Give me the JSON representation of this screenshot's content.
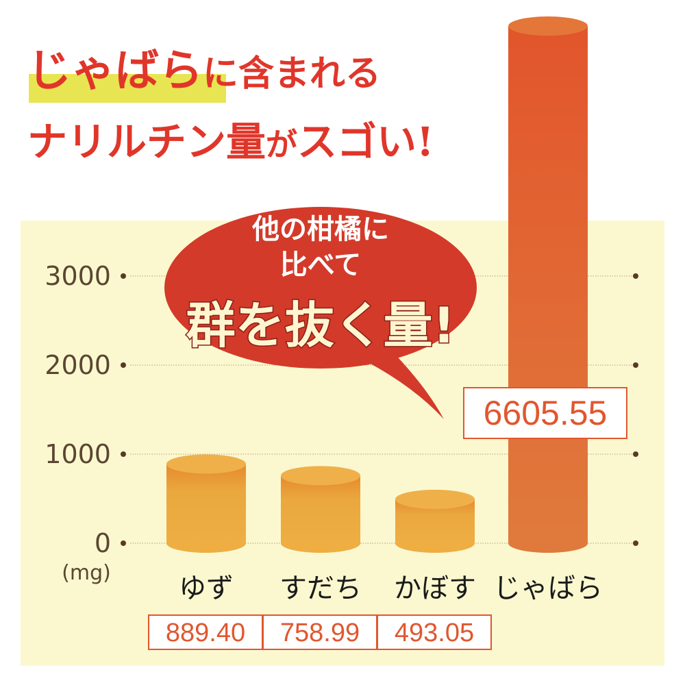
{
  "title": {
    "line1_highlight": "じゃばら",
    "line1_rest": "に含まれる",
    "line2_main": "ナリルチン量",
    "line2_small": "が",
    "line2_end": "スゴい!"
  },
  "bubble": {
    "line1": "他の柑橘に",
    "line2": "比べて",
    "line3": "群を抜く量!"
  },
  "colors": {
    "title": "#e0362a",
    "highlight": "#e8e552",
    "panel": "#fbf8cf",
    "bar": "#eaa83e",
    "bar_top": "#f0b24a",
    "jabara_bar": "#e0703a",
    "bubble": "#d33a2a",
    "label": "#e0572f",
    "axis_text": "#5a4632"
  },
  "chart_data": {
    "type": "bar",
    "categories": [
      "ゆず",
      "すだち",
      "かぼす",
      "じゃばら"
    ],
    "values": [
      889.4,
      758.99,
      493.05,
      6605.55
    ],
    "value_labels": [
      "889.40",
      "758.99",
      "493.05",
      "6605.55"
    ],
    "yticks": [
      "0",
      "1000",
      "2000",
      "3000"
    ],
    "ylabel": "(mg)",
    "ylim": [
      0,
      3000
    ],
    "grid": true,
    "style": "3d-cylinder"
  }
}
